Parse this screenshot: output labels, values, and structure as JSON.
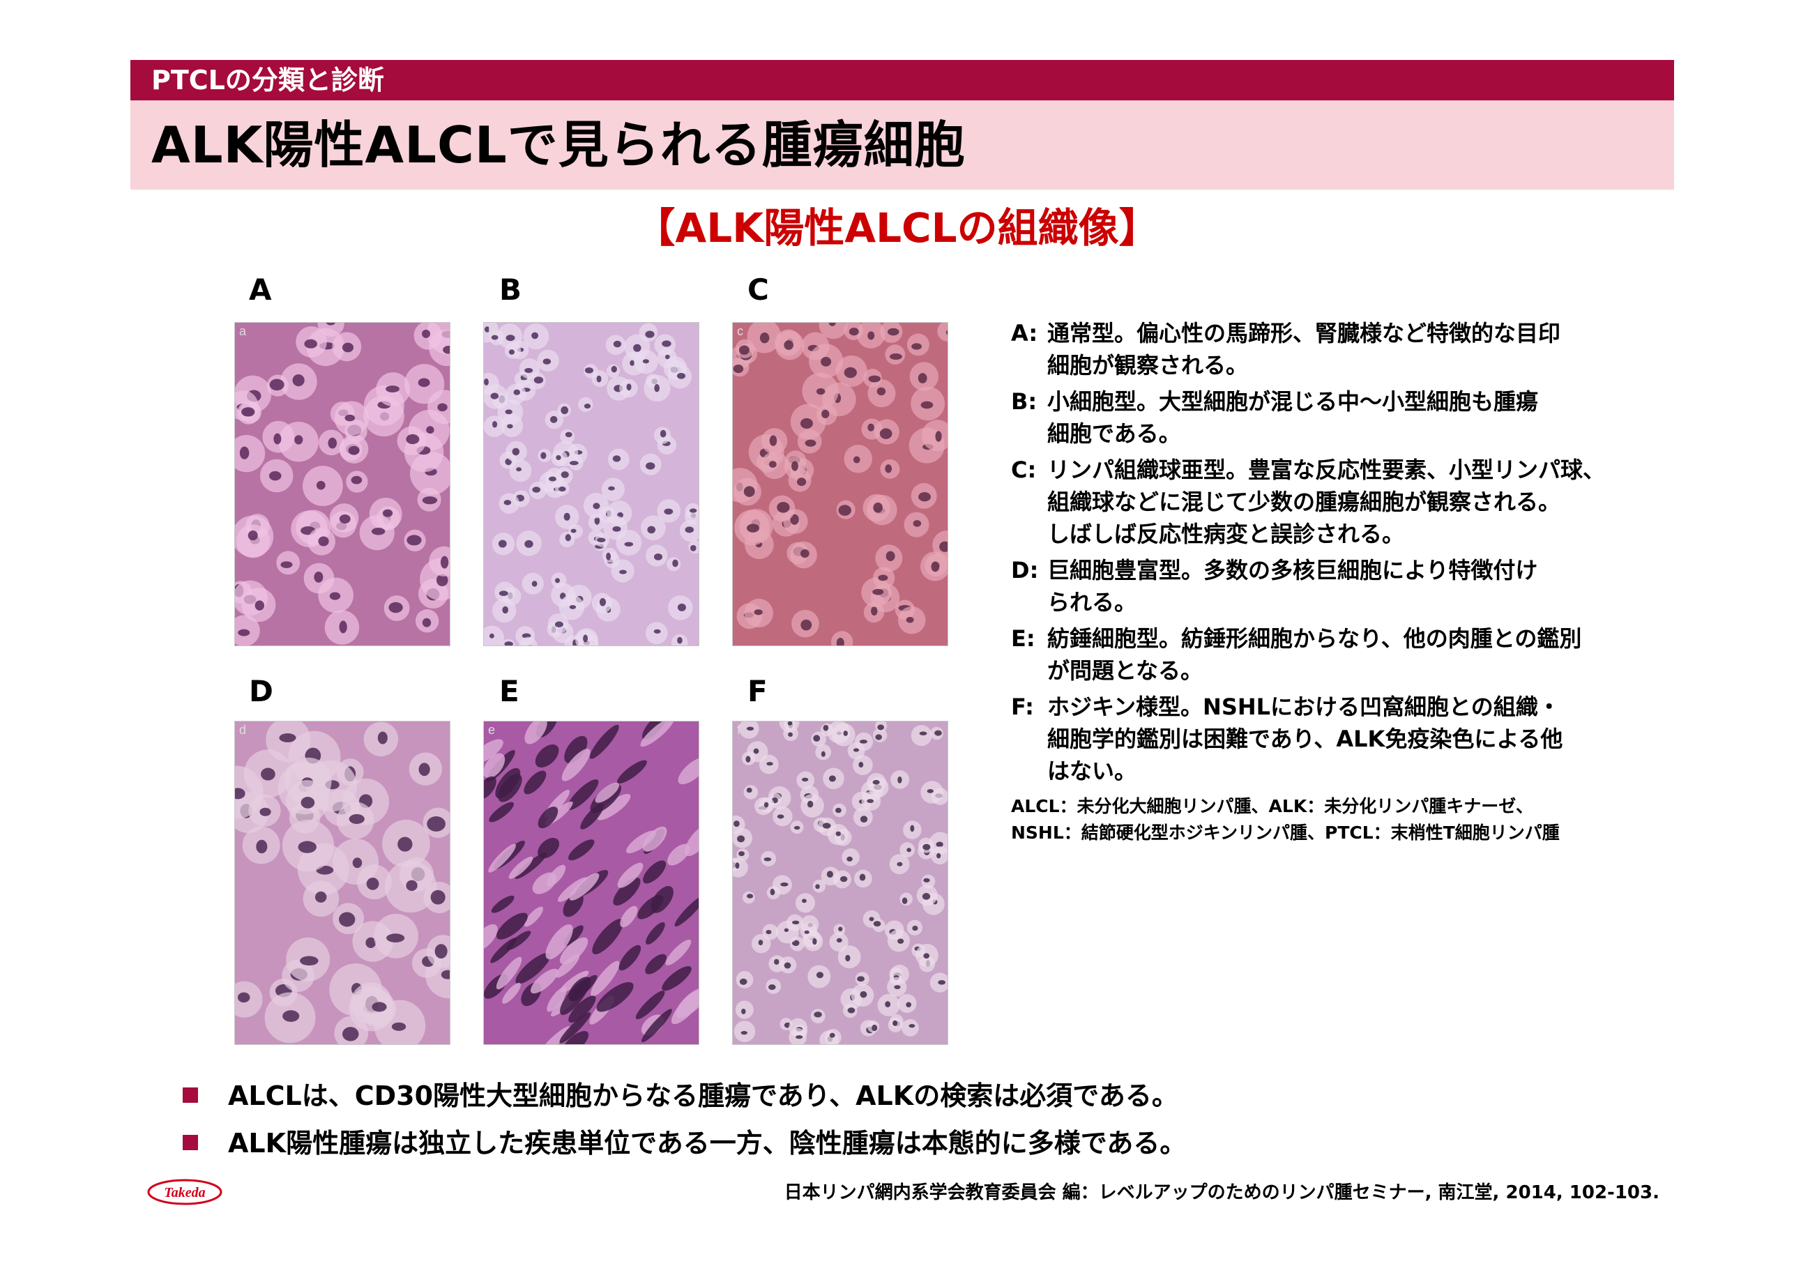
{
  "header": {
    "section": "PTCLの分類と診断",
    "title": "ALK陽性ALCLで見られる腫瘍細胞"
  },
  "subtitle": "【ALK陽性ALCLの組織像】",
  "panels": [
    {
      "letter": "A",
      "corner": "a",
      "colors": {
        "bg": "#b773a4",
        "cell": "#efc2e3",
        "nucleus": "#5a2a5c"
      }
    },
    {
      "letter": "B",
      "corner": "b",
      "colors": {
        "bg": "#d4b4d8",
        "cell": "#eadcef",
        "nucleus": "#4c2f5c"
      }
    },
    {
      "letter": "C",
      "corner": "c",
      "colors": {
        "bg": "#c06a7e",
        "cell": "#e7a7b7",
        "nucleus": "#5c2b48"
      }
    },
    {
      "letter": "D",
      "corner": "d",
      "colors": {
        "bg": "#c794bd",
        "cell": "#e6cde0",
        "nucleus": "#4e2a55"
      }
    },
    {
      "letter": "E",
      "corner": "e",
      "colors": {
        "bg": "#a85aa4",
        "cell": "#d8a8d3",
        "nucleus": "#3f1d47"
      }
    },
    {
      "letter": "F",
      "corner": "f",
      "colors": {
        "bg": "#c7a3c6",
        "cell": "#ecdcea",
        "nucleus": "#3e2a4a"
      }
    }
  ],
  "descriptions": [
    {
      "key": "A:",
      "lines": [
        "通常型。偏心性の馬蹄形、腎臓様など特徴的な目印",
        "細胞が観察される。"
      ]
    },
    {
      "key": "B:",
      "lines": [
        "小細胞型。大型細胞が混じる中～小型細胞も腫瘍",
        "細胞である。"
      ]
    },
    {
      "key": "C:",
      "lines": [
        "リンパ組織球亜型。豊富な反応性要素、小型リンパ球、",
        "組織球などに混じて少数の腫瘍細胞が観察される。",
        "しばしば反応性病変と誤診される。"
      ]
    },
    {
      "key": "D:",
      "lines": [
        "巨細胞豊富型。多数の多核巨細胞により特徴付け",
        "られる。"
      ]
    },
    {
      "key": "E:",
      "lines": [
        "紡錘細胞型。紡錘形細胞からなり、他の肉腫との鑑別",
        "が問題となる。"
      ]
    },
    {
      "key": "F:",
      "lines": [
        "ホジキン様型。NSHLにおける凹窩細胞との組織・",
        "細胞学的鑑別は困難であり、ALK免疫染色による他",
        "はない。"
      ]
    }
  ],
  "abbreviations": [
    "ALCL：未分化大細胞リンパ腫、ALK：未分化リンパ腫キナーゼ、",
    "NSHL：結節硬化型ホジキンリンパ腫、PTCL：末梢性T細胞リンパ腫"
  ],
  "bullets": [
    "ALCLは、CD30陽性大型細胞からなる腫瘍であり、ALKの検索は必須である。",
    "ALK陽性腫瘍は独立した疾患単位である一方、陰性腫瘍は本態的に多様である。"
  ],
  "logo_text": "Takeda",
  "citation": "日本リンパ網内系学会教育委員会 編：レベルアップのためのリンパ腫セミナー, 南江堂, 2014, 102-103.",
  "colors": {
    "accent": "#a50b3c",
    "title_band": "#f9d3da",
    "subtitle": "#cc0000",
    "logo": "#d0021b"
  }
}
